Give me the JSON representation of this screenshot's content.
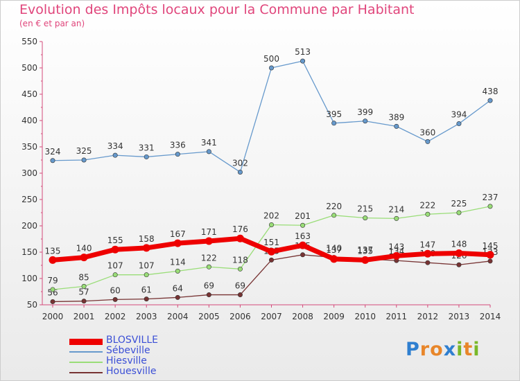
{
  "header": {
    "title": "Evolution des Impôts locaux pour la Commune par Habitant",
    "subtitle": "(en € et par an)"
  },
  "brand": {
    "letters": [
      {
        "char": "P",
        "color": "#2f7fd0"
      },
      {
        "char": "r",
        "color": "#e8862a"
      },
      {
        "char": "o",
        "color": "#e8862a"
      },
      {
        "char": "x",
        "color": "#2f7fd0"
      },
      {
        "char": "i",
        "color": "#79b829"
      },
      {
        "char": "t",
        "color": "#e8862a"
      },
      {
        "char": "i",
        "color": "#79b829"
      }
    ]
  },
  "chart_data": {
    "type": "line",
    "title": "Evolution des Impôts locaux pour la Commune par Habitant",
    "subtitle": "(en € et par an)",
    "x": [
      "2000",
      "2001",
      "2002",
      "2003",
      "2004",
      "2005",
      "2006",
      "2007",
      "2008",
      "2009",
      "2010",
      "2011",
      "2012",
      "2013",
      "2014"
    ],
    "ylim": [
      50,
      550
    ],
    "yticks": [
      50,
      100,
      150,
      200,
      250,
      300,
      350,
      400,
      450,
      500,
      550
    ],
    "grid": false,
    "legend_position": "bottom-left",
    "series": [
      {
        "name": "BLOSVILLE",
        "color": "#ee0000",
        "values": [
          135,
          140,
          155,
          158,
          167,
          171,
          176,
          151,
          163,
          137,
          135,
          143,
          147,
          148,
          145
        ]
      },
      {
        "name": "Sébeville",
        "color": "#6699cc",
        "values": [
          324,
          325,
          334,
          331,
          336,
          341,
          302,
          500,
          513,
          395,
          399,
          389,
          360,
          394,
          438
        ]
      },
      {
        "name": "Hiesville",
        "color": "#99dd77",
        "values": [
          79,
          85,
          107,
          107,
          114,
          122,
          118,
          202,
          201,
          220,
          215,
          214,
          222,
          225,
          237
        ]
      },
      {
        "name": "Houesville",
        "color": "#773333",
        "values": [
          56,
          57,
          60,
          61,
          64,
          69,
          69,
          135,
          145,
          140,
          137,
          134,
          130,
          126,
          133
        ]
      }
    ]
  }
}
